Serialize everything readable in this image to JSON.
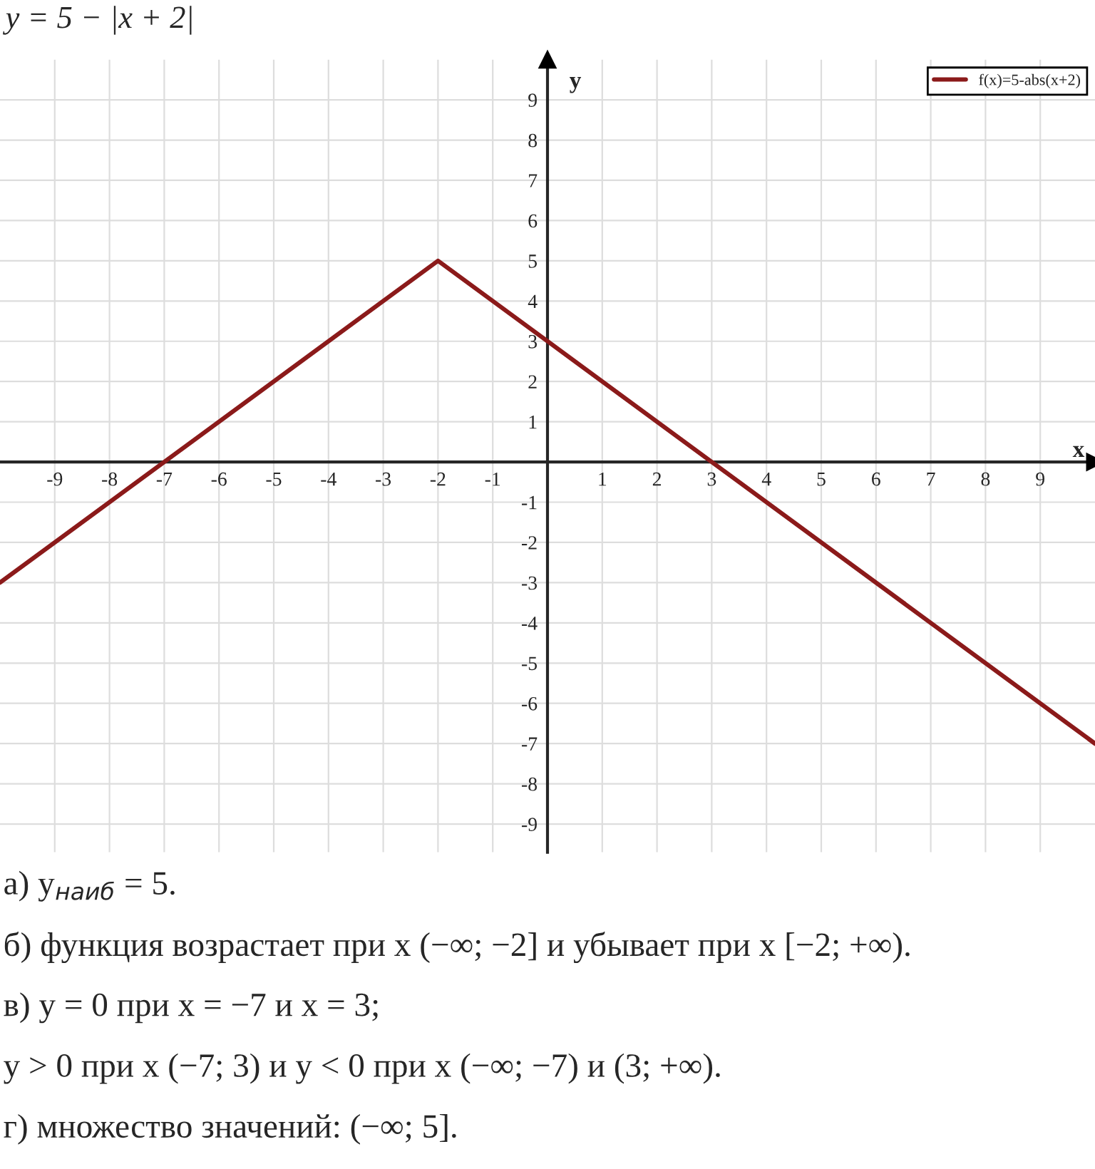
{
  "chart_data": {
    "type": "line",
    "title": "y = 5 − |x + 2|",
    "xlabel": "x",
    "ylabel": "y",
    "x": [
      -10,
      -2,
      10
    ],
    "series": [
      {
        "name": "f(x)=5-abs(x+2)",
        "color": "#8b1a1a",
        "values": [
          -3,
          5,
          -7
        ]
      }
    ],
    "xlim": [
      -10,
      10
    ],
    "ylim": [
      -9.7,
      10
    ],
    "xticks": [
      -9,
      -8,
      -7,
      -6,
      -5,
      -4,
      -3,
      -2,
      -1,
      1,
      2,
      3,
      4,
      5,
      6,
      7,
      8,
      9
    ],
    "yticks": [
      -9,
      -8,
      -7,
      -6,
      -5,
      -4,
      -3,
      -2,
      -1,
      1,
      2,
      3,
      4,
      5,
      6,
      7,
      8,
      9
    ],
    "grid": true,
    "legend": "top right",
    "marker": "none",
    "line_style": "solid",
    "annotations": [
      "а) y$_{наиб}$ = 5.",
      "б) функция возрастает при x (−∞; −2] и убывает при x [−2; +∞).",
      "в) y = 0 при x = −7 и x = 3;",
      "y > 0 при x (−7; 3) и y < 0 при x (−∞; −7) и (3; +∞).",
      "г) множество значений: (−∞; 5]."
    ]
  }
}
